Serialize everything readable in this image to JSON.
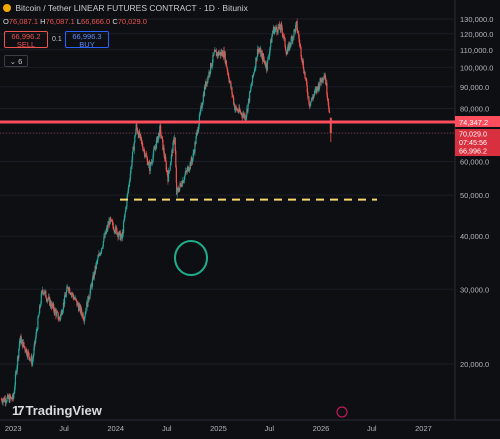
{
  "header": {
    "title": "Bitcoin / Tether LINEAR FUTURES CONTRACT · 1D · Bitunix",
    "ohlc": [
      {
        "key": "O",
        "val": "76,087.1"
      },
      {
        "key": "H",
        "val": "76,087.1"
      },
      {
        "key": "L",
        "val": "66,666.0"
      },
      {
        "key": "C",
        "val": "70,029.0"
      }
    ],
    "sell_price": "66,996.2",
    "sell_label": "SELL",
    "buy_price": "66,996.3",
    "buy_label": "BUY",
    "spread": "0.1",
    "indicator_count": "6"
  },
  "watermark": "TradingView",
  "colors": {
    "up": "#26a69a",
    "down": "#ef5350",
    "resistance": "#ff4d5e",
    "support_dashed": "#f5d76e",
    "circle": "#1fae8c",
    "background": "#0e0f13",
    "axis_text": "#b2b5be"
  },
  "chart_data": {
    "type": "candlestick",
    "y_scale": "log",
    "y_ticks": [
      20000,
      30000,
      40000,
      50000,
      60000,
      70000,
      80000,
      90000,
      100000,
      110000,
      120000,
      130000
    ],
    "y_tick_labels": [
      "20,000.0",
      "30,000.0",
      "40,000.0",
      "50,000.0",
      "60,000.0",
      "70,000.0",
      "80,000.0",
      "90,000.0",
      "100,000.0",
      "110,000.0",
      "120,000.0",
      "130,000.0"
    ],
    "x_ticks": [
      "2023",
      "Jul",
      "2024",
      "Jul",
      "2025",
      "Jul",
      "2026",
      "Jul",
      "2027"
    ],
    "x_range": [
      "2022-11-15",
      "2027-03-15"
    ],
    "price_path": [
      [
        "2022-11-20",
        16500
      ],
      [
        "2023-01-01",
        16600
      ],
      [
        "2023-01-25",
        23000
      ],
      [
        "2023-03-10",
        20200
      ],
      [
        "2023-04-15",
        30000
      ],
      [
        "2023-06-15",
        25500
      ],
      [
        "2023-07-15",
        30500
      ],
      [
        "2023-09-10",
        25800
      ],
      [
        "2023-10-25",
        34500
      ],
      [
        "2023-12-10",
        43500
      ],
      [
        "2024-01-23",
        39500
      ],
      [
        "2024-03-14",
        72500
      ],
      [
        "2024-05-01",
        58000
      ],
      [
        "2024-06-07",
        71500
      ],
      [
        "2024-07-05",
        55000
      ],
      [
        "2024-07-29",
        69000
      ],
      [
        "2024-08-05",
        50500
      ],
      [
        "2024-10-01",
        61000
      ],
      [
        "2024-11-12",
        89000
      ],
      [
        "2024-12-17",
        107500
      ],
      [
        "2025-01-21",
        108000
      ],
      [
        "2025-03-01",
        80000
      ],
      [
        "2025-04-08",
        76500
      ],
      [
        "2025-05-22",
        111000
      ],
      [
        "2025-06-22",
        100500
      ],
      [
        "2025-07-14",
        122500
      ],
      [
        "2025-08-14",
        124000
      ],
      [
        "2025-09-01",
        108000
      ],
      [
        "2025-10-06",
        126000
      ],
      [
        "2025-11-21",
        82000
      ],
      [
        "2026-01-14",
        97000
      ],
      [
        "2026-02-03",
        76087
      ]
    ],
    "last_candle": {
      "date": "2026-02-05",
      "open": 76087.1,
      "high": 76087.1,
      "low": 66666.0,
      "close": 70029.0
    },
    "resistance_line": {
      "value": 74347.2,
      "label": "74,347.2"
    },
    "support_line": {
      "value": 48800,
      "style": "dashed"
    },
    "price_labels": [
      {
        "text": "70,029.0",
        "value": 70029.0
      },
      {
        "text": "07:45:56",
        "value": 70029.0
      },
      {
        "text": "66,996.2",
        "value": 66996.2
      }
    ]
  }
}
